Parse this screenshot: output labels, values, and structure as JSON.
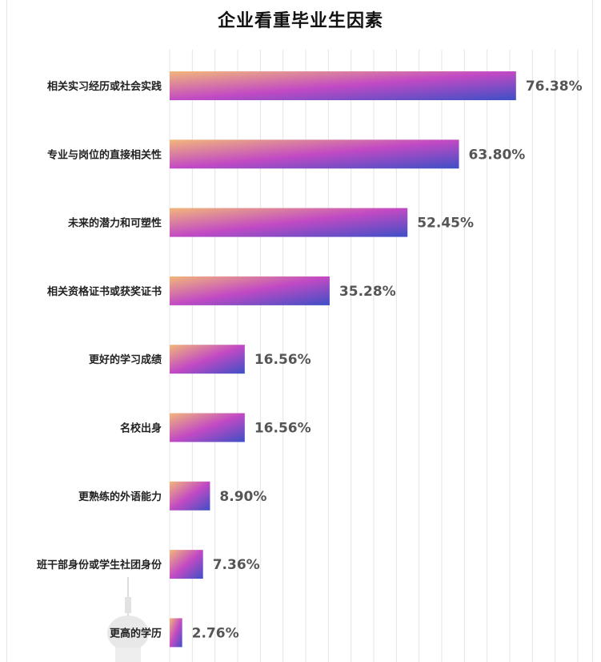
{
  "chart_data": {
    "type": "bar",
    "orientation": "horizontal",
    "title": "企业看重毕业生因素",
    "categories": [
      "相关实习经历或社会实践",
      "专业与岗位的直接相关性",
      "未来的潜力和可塑性",
      "相关资格证书或获奖证书",
      "更好的学习成绩",
      "名校出身",
      "更熟练的外语能力",
      "班干部身份或学生社团身份",
      "更高的学历"
    ],
    "values": [
      76.38,
      63.8,
      52.45,
      35.28,
      16.56,
      16.56,
      8.9,
      7.36,
      2.76
    ],
    "value_labels": [
      "76.38%",
      "63.80%",
      "52.45%",
      "35.28%",
      "16.56%",
      "16.56%",
      "8.90%",
      "7.36%",
      "2.76%"
    ],
    "xlim": [
      0,
      90
    ],
    "grid": true,
    "legend": "none",
    "colors": {
      "gradient_start": "#f2b77a",
      "gradient_mid": "#c24ac4",
      "gradient_end": "#3d4fc6",
      "grid": "#e4e4e4",
      "value_text": "#555555"
    }
  }
}
